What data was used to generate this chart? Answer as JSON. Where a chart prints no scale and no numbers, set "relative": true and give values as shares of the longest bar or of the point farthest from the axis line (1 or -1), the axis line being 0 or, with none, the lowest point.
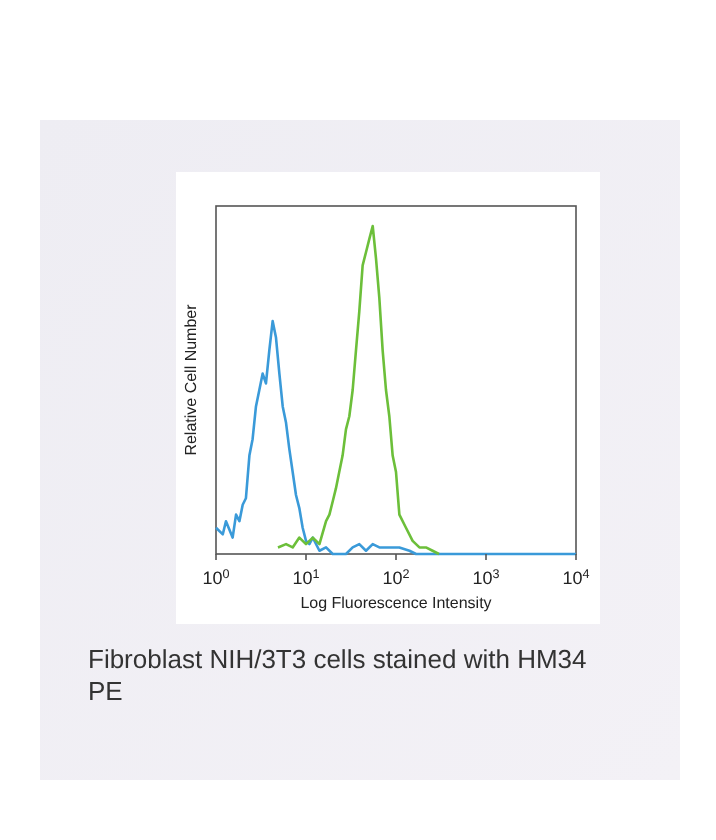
{
  "chart_data": {
    "type": "line",
    "relative": true,
    "log": "x",
    "xlabel": "Log Fluorescence Intensity",
    "ylabel": "Relative Cell Number",
    "xlim": [
      1,
      10000
    ],
    "xticks": [
      {
        "value": 1,
        "label": "10$^{0}$"
      },
      {
        "value": 10,
        "label": "10$^{1}$"
      },
      {
        "value": 100,
        "label": "10$^{2}$"
      },
      {
        "value": 1000,
        "label": "10$^{3}$"
      },
      {
        "value": 10000,
        "label": "10$^{4}$"
      }
    ],
    "annotations": [
      "Fibroblast NIH/3T3 cells stained with HM34 PE"
    ],
    "series": [
      {
        "color": "#3a9ad9",
        "x": [
          1,
          1.19,
          1.29,
          1.53,
          1.67,
          1.82,
          1.98,
          2.15,
          2.35,
          2.55,
          2.78,
          3.03,
          3.3,
          3.59,
          3.91,
          4.26,
          4.64,
          5.06,
          5.51,
          6,
          6.53,
          7.11,
          7.74,
          8.43,
          9.18,
          10,
          10.9,
          11.9,
          14.1,
          16.7,
          19.8,
          27.8,
          33,
          39.1,
          46.4,
          55.1,
          65.3,
          84.3,
          109,
          141,
          167,
          10000
        ],
        "values": [
          0.08,
          0.06,
          0.1,
          0.05,
          0.12,
          0.1,
          0.15,
          0.17,
          0.3,
          0.35,
          0.45,
          0.5,
          0.55,
          0.52,
          0.62,
          0.71,
          0.66,
          0.55,
          0.45,
          0.4,
          0.32,
          0.25,
          0.18,
          0.14,
          0.08,
          0.04,
          0.03,
          0.05,
          0.01,
          0.02,
          0,
          0,
          0.02,
          0.03,
          0.01,
          0.03,
          0.02,
          0.02,
          0.02,
          0.01,
          0,
          0
        ]
      },
      {
        "color": "#6cbf3a",
        "x": [
          4.88,
          6,
          7.11,
          8.43,
          10,
          11.9,
          14.1,
          16.7,
          18.2,
          19.8,
          21.5,
          23.4,
          25.5,
          27.8,
          30.3,
          33,
          35.9,
          39.1,
          42.6,
          46.4,
          50.5,
          55.1,
          60,
          65.3,
          71.1,
          77.4,
          84.3,
          91.8,
          100,
          109,
          129,
          153,
          182,
          215,
          255,
          300
        ],
        "values": [
          0.02,
          0.03,
          0.02,
          0.05,
          0.03,
          0.05,
          0.03,
          0.1,
          0.12,
          0.16,
          0.2,
          0.25,
          0.3,
          0.38,
          0.42,
          0.5,
          0.62,
          0.74,
          0.88,
          0.92,
          0.96,
          1,
          0.9,
          0.78,
          0.62,
          0.5,
          0.42,
          0.3,
          0.25,
          0.12,
          0.08,
          0.04,
          0.02,
          0.02,
          0.01,
          0
        ]
      }
    ]
  }
}
